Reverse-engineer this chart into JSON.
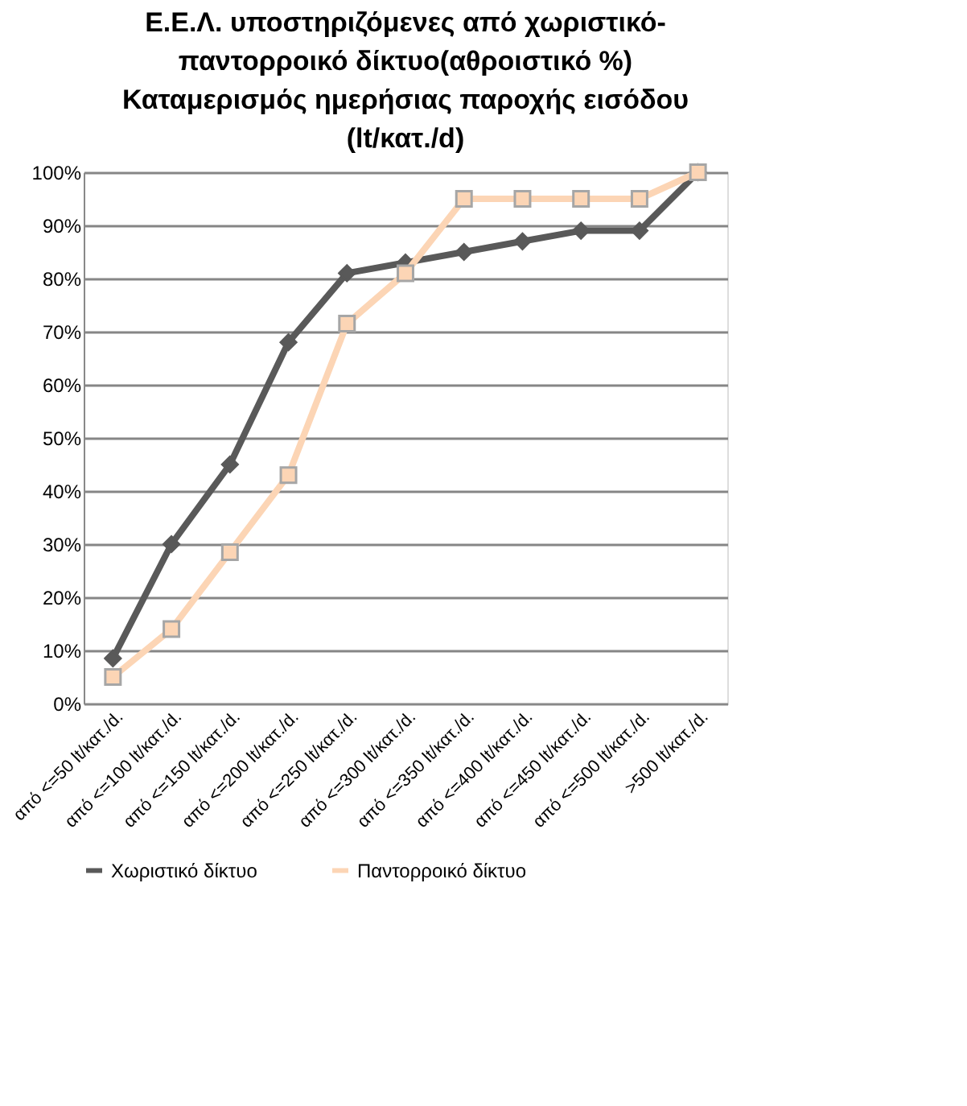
{
  "chart_data": {
    "type": "line",
    "title": "Ε.Ε.Λ. υποστηριζόμενες από χωριστικό-παντορροικό δίκτυο(αθροιστικό %) Καταμερισμός ημερήσιας παροχής εισόδου (lt/κατ./d)",
    "categories": [
      "από <=50 lt/κατ./d.",
      "από <=100 lt/κατ./d.",
      "από <=150 lt/κατ./d.",
      "από <=200 lt/κατ./d.",
      "από <=250 lt/κατ./d.",
      "από <=300 lt/κατ./d.",
      "από <=350 lt/κατ./d.",
      "από <=400 lt/κατ./d.",
      "από <=450 lt/κατ./d.",
      "από <=500 lt/κατ./d.",
      ">500 lt/κατ./d."
    ],
    "series": [
      {
        "name": "Χωριστικό δίκτυο",
        "color": "#595959",
        "marker": "diamond",
        "values": [
          8.5,
          30,
          45,
          68,
          81,
          83,
          85,
          87,
          89,
          89,
          100
        ]
      },
      {
        "name": "Παντορροικό δίκτυο",
        "color": "#fcd5b5",
        "marker": "square",
        "values": [
          5,
          14,
          28.5,
          43,
          71.5,
          81,
          95,
          95,
          95,
          95,
          100
        ]
      }
    ],
    "ylim": [
      0,
      100
    ],
    "yticks": [
      {
        "value": 0,
        "label": "0%"
      },
      {
        "value": 10,
        "label": "10%"
      },
      {
        "value": 20,
        "label": "20%"
      },
      {
        "value": 30,
        "label": "30%"
      },
      {
        "value": 40,
        "label": "40%"
      },
      {
        "value": 50,
        "label": "50%"
      },
      {
        "value": 60,
        "label": "60%"
      },
      {
        "value": 70,
        "label": "70%"
      },
      {
        "value": 80,
        "label": "80%"
      },
      {
        "value": 90,
        "label": "90%"
      },
      {
        "value": 100,
        "label": "100%"
      }
    ],
    "grid": "y",
    "legend": "bottom",
    "line_style": "solid"
  }
}
